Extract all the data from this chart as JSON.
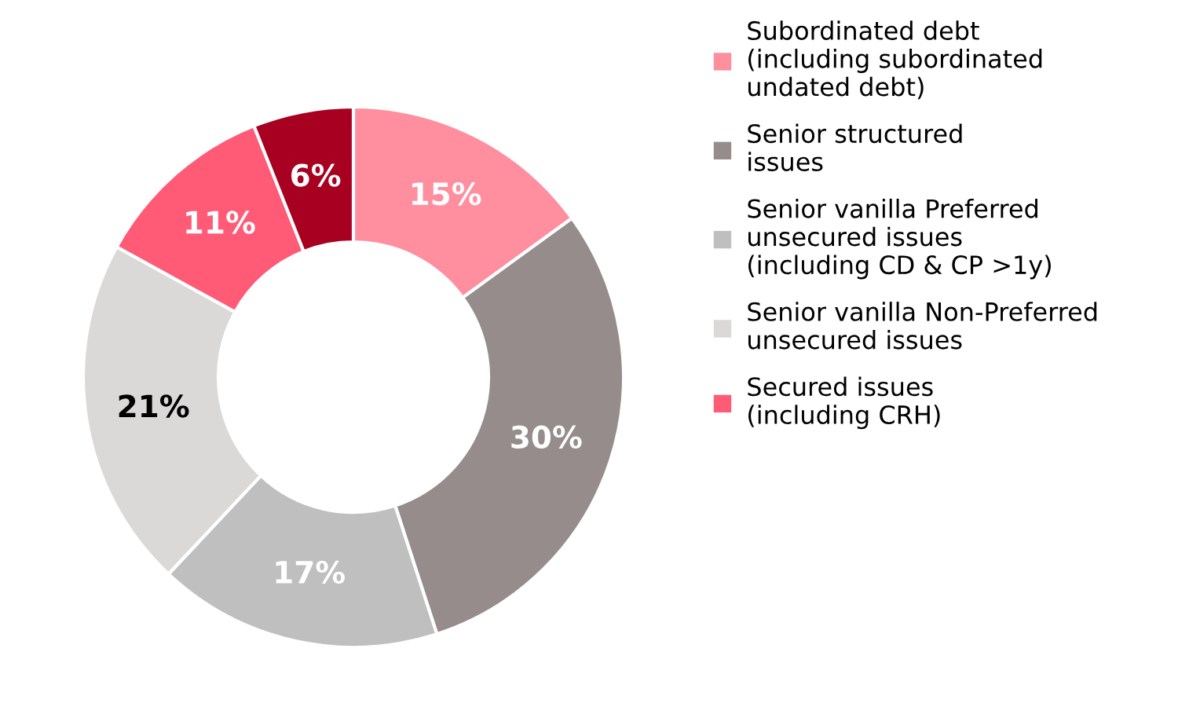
{
  "chart_data": {
    "type": "donut",
    "categories": [
      "Subordinated debt\n(including subordinated\nundated debt)",
      "Senior structured\nissues",
      "Senior vanilla Preferred\nunsecured issues\n(including CD & CP >1y)",
      "Senior vanilla Non-Preferred\nunsecured issues",
      "Secured issues\n(including CRH)",
      null
    ],
    "values": [
      15,
      30,
      17,
      21,
      11,
      6
    ],
    "value_labels": [
      "15%",
      "30%",
      "17%",
      "21%",
      "11%",
      "6%"
    ],
    "colors": [
      "#ff8e9f",
      "#968c8c",
      "#bfbfbf",
      "#dbd9d8",
      "#ff5a76",
      "#a80020"
    ],
    "legend": "right"
  }
}
